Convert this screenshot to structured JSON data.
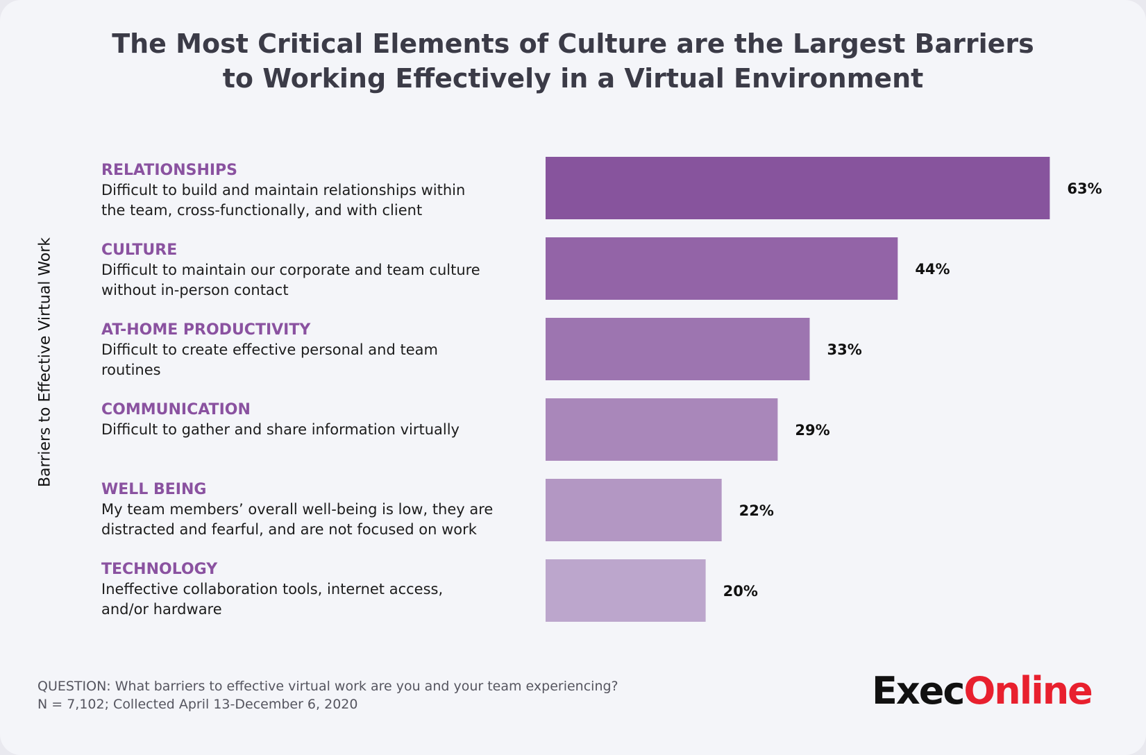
{
  "title_line1": "The Most Critical Elements of Culture are the Largest Barriers",
  "title_line2": "to Working Effectively in a Virtual Environment",
  "colors": {
    "bars": [
      "#87549d",
      "#9364a7",
      "#9d75b0",
      "#a987ba",
      "#b397c3",
      "#bca6cc"
    ]
  },
  "chart_data": {
    "type": "bar",
    "orientation": "horizontal",
    "ylabel": "Barriers to Effective Virtual Work",
    "categories": [
      {
        "name": "RELATIONSHIPS",
        "description": "Difficult to build and maintain relationships within\nthe team, cross-functionally, and with client"
      },
      {
        "name": "CULTURE",
        "description": "Difficult to maintain our corporate and team culture\nwithout in-person contact"
      },
      {
        "name": "AT-HOME PRODUCTIVITY",
        "description": "Difficult to create effective personal and team\nroutines"
      },
      {
        "name": "COMMUNICATION",
        "description": "Difficult to gather and share information virtually"
      },
      {
        "name": "WELL BEING",
        "description": "My team members’ overall well-being is low, they are\ndistracted and fearful, and are not focused on work"
      },
      {
        "name": "TECHNOLOGY",
        "description": "Ineffective collaboration tools, internet access,\nand/or hardware"
      }
    ],
    "values": [
      63,
      44,
      33,
      29,
      22,
      20
    ],
    "value_labels": [
      "63%",
      "44%",
      "33%",
      "29%",
      "22%",
      "20%"
    ],
    "unit": "%",
    "grid": false
  },
  "footer": {
    "question": "QUESTION: What barriers to effective virtual work are you and your team experiencing?",
    "sample": "N = 7,102; Collected April 13-December 6, 2020"
  },
  "logo": {
    "part1": "Exec",
    "part2": "Online"
  }
}
